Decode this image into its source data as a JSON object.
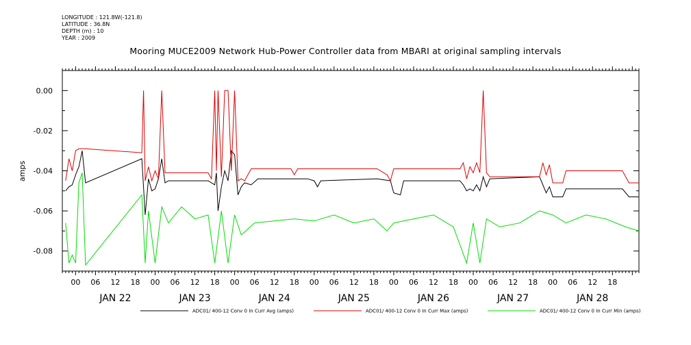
{
  "header": {
    "longitude": "LONGITUDE : 121.8W(-121.8)",
    "latitude": "LATITUDE : 36.8N",
    "depth": "DEPTH (m) : 10",
    "year": "YEAR : 2009"
  },
  "chart_data": {
    "type": "line",
    "title": "Mooring MUCE2009 Network Hub-Power Controller data from MBARI at original sampling intervals",
    "ylabel": "amps",
    "xlabel": "",
    "xlim_hours_from_jan22_00": [
      -4,
      170
    ],
    "ylim": [
      -0.09,
      0.01
    ],
    "yticks": [
      0.0,
      -0.02,
      -0.04,
      -0.06,
      -0.08
    ],
    "ytick_labels": [
      "0.00",
      "-0.02",
      "-0.04",
      "-0.06",
      "-0.08"
    ],
    "hour_ticks": [
      "00",
      "06",
      "12",
      "18",
      "00",
      "06",
      "12",
      "18",
      "00",
      "06",
      "12",
      "18",
      "00",
      "06",
      "12",
      "18",
      "00",
      "06",
      "12",
      "18",
      "00",
      "06",
      "12",
      "18",
      "00",
      "06",
      "12",
      "18"
    ],
    "day_labels": [
      "JAN 22",
      "JAN 23",
      "JAN 24",
      "JAN 25",
      "JAN 26",
      "JAN 27",
      "JAN 28"
    ],
    "grid": false,
    "legend_position": "bottom",
    "series": [
      {
        "name": "ADC01/ 400-12 Conv 0 In Curr Avg (amps)",
        "color": "#000000",
        "points": [
          [
            -3,
            -0.05
          ],
          [
            -2,
            -0.048
          ],
          [
            -1,
            -0.047
          ],
          [
            0,
            -0.042
          ],
          [
            1,
            -0.038
          ],
          [
            2,
            -0.03
          ],
          [
            3,
            -0.046
          ],
          [
            20,
            -0.034
          ],
          [
            21,
            -0.062
          ],
          [
            22,
            -0.044
          ],
          [
            23,
            -0.05
          ],
          [
            24,
            -0.049
          ],
          [
            25,
            -0.044
          ],
          [
            26,
            -0.034
          ],
          [
            27,
            -0.046
          ],
          [
            28,
            -0.045
          ],
          [
            40,
            -0.045
          ],
          [
            41,
            -0.046
          ],
          [
            42,
            -0.047
          ],
          [
            42.5,
            -0.041
          ],
          [
            43,
            -0.06
          ],
          [
            44,
            -0.048
          ],
          [
            45,
            -0.04
          ],
          [
            46,
            -0.045
          ],
          [
            47,
            -0.03
          ],
          [
            48,
            -0.032
          ],
          [
            49,
            -0.052
          ],
          [
            50,
            -0.048
          ],
          [
            51,
            -0.046
          ],
          [
            53,
            -0.047
          ],
          [
            55,
            -0.044
          ],
          [
            70,
            -0.044
          ],
          [
            72,
            -0.045
          ],
          [
            73,
            -0.048
          ],
          [
            74,
            -0.045
          ],
          [
            91,
            -0.044
          ],
          [
            95,
            -0.045
          ],
          [
            96,
            -0.051
          ],
          [
            98,
            -0.052
          ],
          [
            99,
            -0.045
          ],
          [
            116,
            -0.045
          ],
          [
            117,
            -0.047
          ],
          [
            118,
            -0.05
          ],
          [
            119,
            -0.049
          ],
          [
            120,
            -0.05
          ],
          [
            121,
            -0.047
          ],
          [
            122,
            -0.05
          ],
          [
            123,
            -0.043
          ],
          [
            124,
            -0.048
          ],
          [
            125,
            -0.044
          ],
          [
            140,
            -0.043
          ],
          [
            141,
            -0.047
          ],
          [
            142,
            -0.051
          ],
          [
            143,
            -0.048
          ],
          [
            144,
            -0.053
          ],
          [
            147,
            -0.053
          ],
          [
            148,
            -0.049
          ],
          [
            165,
            -0.049
          ],
          [
            167,
            -0.053
          ],
          [
            170,
            -0.053
          ]
        ]
      },
      {
        "name": "ADC01/ 400-12 Conv 0 In Curr Max (amps)",
        "color": "#dd0000",
        "points": [
          [
            -3,
            -0.045
          ],
          [
            -2,
            -0.034
          ],
          [
            -1,
            -0.04
          ],
          [
            0,
            -0.03
          ],
          [
            1,
            -0.029
          ],
          [
            3,
            -0.029
          ],
          [
            20,
            -0.031
          ],
          [
            20.5,
            0.0
          ],
          [
            21,
            -0.045
          ],
          [
            22,
            -0.038
          ],
          [
            23,
            -0.045
          ],
          [
            24,
            -0.04
          ],
          [
            25,
            -0.044
          ],
          [
            26,
            0.0
          ],
          [
            27,
            -0.041
          ],
          [
            28,
            -0.041
          ],
          [
            40,
            -0.041
          ],
          [
            41,
            -0.044
          ],
          [
            42,
            0.0
          ],
          [
            42.5,
            -0.04
          ],
          [
            43,
            0.0
          ],
          [
            44,
            -0.043
          ],
          [
            45,
            0.0
          ],
          [
            46,
            0.0
          ],
          [
            47,
            -0.04
          ],
          [
            48,
            0.0
          ],
          [
            49,
            -0.045
          ],
          [
            50,
            -0.044
          ],
          [
            51,
            -0.045
          ],
          [
            53,
            -0.039
          ],
          [
            65,
            -0.039
          ],
          [
            66,
            -0.042
          ],
          [
            67,
            -0.039
          ],
          [
            91,
            -0.039
          ],
          [
            94,
            -0.042
          ],
          [
            95,
            -0.045
          ],
          [
            96,
            -0.039
          ],
          [
            116,
            -0.039
          ],
          [
            117,
            -0.036
          ],
          [
            118,
            -0.044
          ],
          [
            119,
            -0.038
          ],
          [
            120,
            -0.041
          ],
          [
            121,
            -0.036
          ],
          [
            122,
            -0.041
          ],
          [
            123,
            0.0
          ],
          [
            124,
            -0.041
          ],
          [
            125,
            -0.043
          ],
          [
            140,
            -0.043
          ],
          [
            141,
            -0.036
          ],
          [
            142,
            -0.042
          ],
          [
            143,
            -0.037
          ],
          [
            144,
            -0.046
          ],
          [
            147,
            -0.046
          ],
          [
            148,
            -0.04
          ],
          [
            165,
            -0.04
          ],
          [
            167,
            -0.046
          ],
          [
            170,
            -0.046
          ]
        ]
      },
      {
        "name": "ADC01/ 400-12 Conv 0 In Curr Min (amps)",
        "color": "#00dd00",
        "points": [
          [
            -3,
            -0.066
          ],
          [
            -2,
            -0.086
          ],
          [
            -1,
            -0.082
          ],
          [
            0,
            -0.086
          ],
          [
            1,
            -0.046
          ],
          [
            2,
            -0.041
          ],
          [
            3,
            -0.087
          ],
          [
            20,
            -0.052
          ],
          [
            21,
            -0.086
          ],
          [
            22,
            -0.06
          ],
          [
            24,
            -0.086
          ],
          [
            26,
            -0.058
          ],
          [
            28,
            -0.066
          ],
          [
            32,
            -0.058
          ],
          [
            36,
            -0.064
          ],
          [
            40,
            -0.062
          ],
          [
            42,
            -0.086
          ],
          [
            44,
            -0.06
          ],
          [
            46,
            -0.086
          ],
          [
            48,
            -0.062
          ],
          [
            50,
            -0.072
          ],
          [
            54,
            -0.066
          ],
          [
            60,
            -0.065
          ],
          [
            66,
            -0.064
          ],
          [
            72,
            -0.065
          ],
          [
            78,
            -0.062
          ],
          [
            84,
            -0.066
          ],
          [
            90,
            -0.064
          ],
          [
            94,
            -0.07
          ],
          [
            96,
            -0.066
          ],
          [
            102,
            -0.064
          ],
          [
            108,
            -0.062
          ],
          [
            114,
            -0.068
          ],
          [
            118,
            -0.086
          ],
          [
            120,
            -0.066
          ],
          [
            122,
            -0.086
          ],
          [
            124,
            -0.064
          ],
          [
            128,
            -0.068
          ],
          [
            134,
            -0.066
          ],
          [
            140,
            -0.06
          ],
          [
            144,
            -0.062
          ],
          [
            148,
            -0.066
          ],
          [
            154,
            -0.062
          ],
          [
            160,
            -0.064
          ],
          [
            166,
            -0.068
          ],
          [
            170,
            -0.07
          ]
        ]
      }
    ]
  }
}
